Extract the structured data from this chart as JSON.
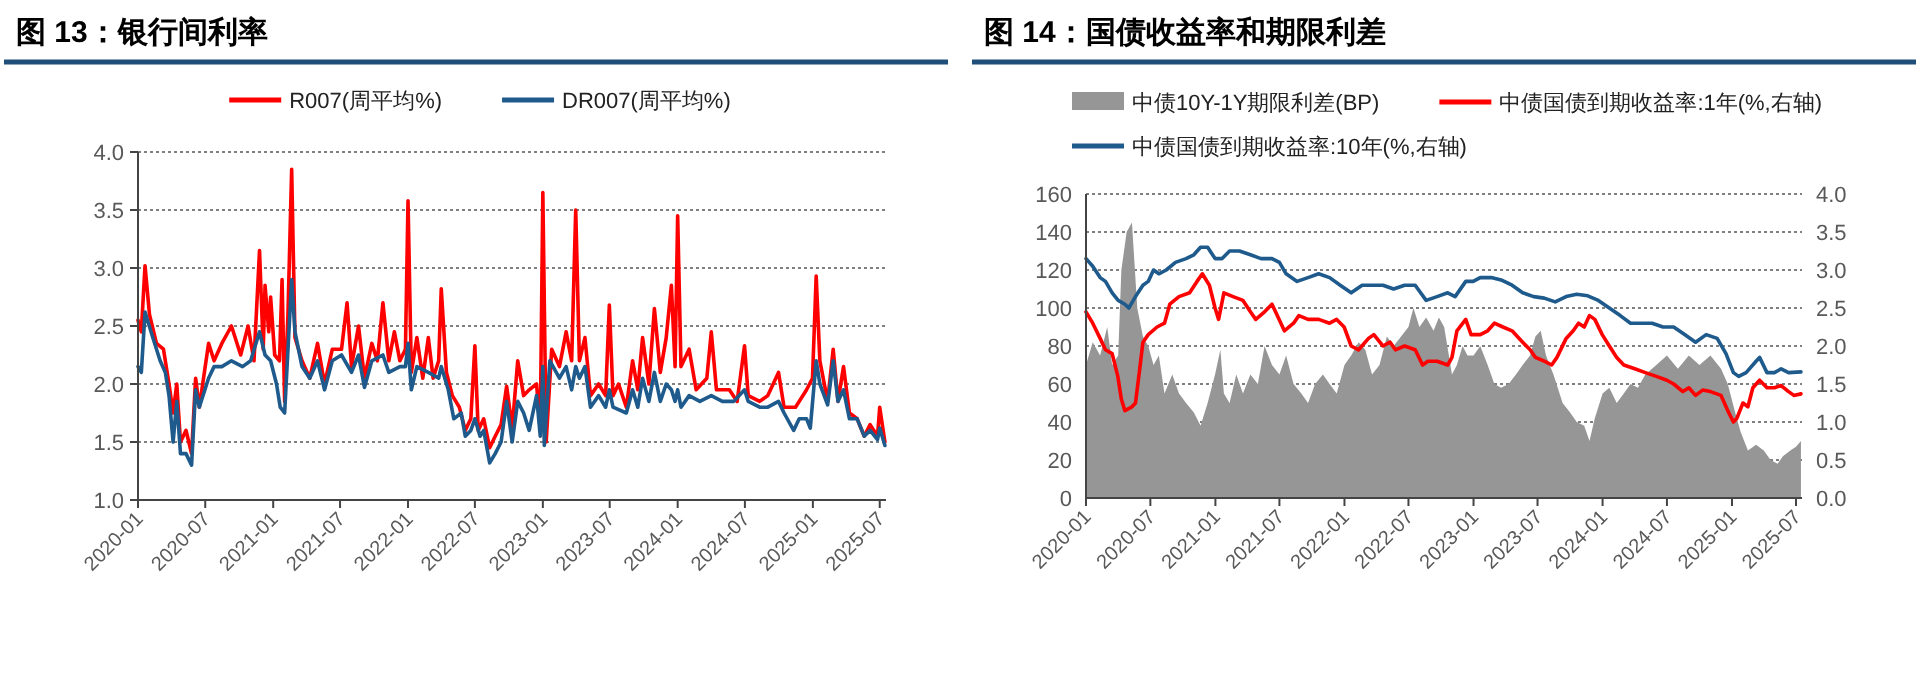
{
  "chart_data": [
    {
      "type": "line",
      "title": "图 13：银行间利率",
      "xlim": [
        "2020-01-01",
        "2025-07-18"
      ],
      "xticks": [
        "2020-01",
        "2020-07",
        "2021-01",
        "2021-07",
        "2022-01",
        "2022-07",
        "2023-01",
        "2023-07",
        "2024-01",
        "2024-07",
        "2025-01",
        "2025-07"
      ],
      "ylim": [
        1,
        4
      ],
      "yticks": [
        {
          "value": 1,
          "label": "1.0"
        },
        1.5,
        {
          "value": 2,
          "label": "2.0"
        },
        2.5,
        {
          "value": 3,
          "label": "3.0"
        },
        3.5,
        {
          "value": 4,
          "label": "4.0"
        }
      ],
      "grid": "y",
      "legend": "top",
      "series": [
        {
          "name": "R007(周平均%)",
          "color": "#ff0000",
          "x": [
            "2020-01-01",
            "2020-01-10",
            "2020-01-20",
            "2020-02-01",
            "2020-02-20",
            "2020-03-10",
            "2020-03-25",
            "2020-04-05",
            "2020-04-15",
            "2020-04-25",
            "2020-05-10",
            "2020-05-25",
            "2020-06-05",
            "2020-06-15",
            "2020-07-10",
            "2020-07-25",
            "2020-08-15",
            "2020-09-10",
            "2020-10-05",
            "2020-10-25",
            "2020-11-10",
            "2020-11-25",
            "2020-12-05",
            "2020-12-10",
            "2020-12-20",
            "2020-12-25",
            "2021-01-05",
            "2021-01-18",
            "2021-01-25",
            "2021-02-01",
            "2021-02-10",
            "2021-02-20",
            "2021-03-01",
            "2021-03-20",
            "2021-04-10",
            "2021-05-01",
            "2021-05-20",
            "2021-06-10",
            "2021-07-05",
            "2021-07-20",
            "2021-08-01",
            "2021-08-20",
            "2021-09-05",
            "2021-09-25",
            "2021-10-10",
            "2021-10-25",
            "2021-11-10",
            "2021-11-25",
            "2021-12-10",
            "2021-12-25",
            "2022-01-01",
            "2022-01-10",
            "2022-01-25",
            "2022-02-10",
            "2022-02-25",
            "2022-03-10",
            "2022-03-25",
            "2022-04-01",
            "2022-04-15",
            "2022-05-01",
            "2022-05-20",
            "2022-06-05",
            "2022-06-20",
            "2022-07-01",
            "2022-07-10",
            "2022-07-25",
            "2022-08-10",
            "2022-08-25",
            "2022-09-10",
            "2022-09-25",
            "2022-10-10",
            "2022-10-25",
            "2022-11-10",
            "2022-11-25",
            "2022-12-15",
            "2022-12-25",
            "2023-01-01",
            "2023-01-10",
            "2023-01-25",
            "2023-02-15",
            "2023-03-05",
            "2023-03-20",
            "2023-03-31",
            "2023-04-10",
            "2023-04-25",
            "2023-05-10",
            "2023-06-01",
            "2023-06-20",
            "2023-06-30",
            "2023-07-10",
            "2023-07-25",
            "2023-08-15",
            "2023-09-01",
            "2023-09-15",
            "2023-09-28",
            "2023-10-15",
            "2023-10-30",
            "2023-11-15",
            "2023-12-01",
            "2023-12-15",
            "2023-12-25",
            "2024-01-01",
            "2024-01-10",
            "2024-02-01",
            "2024-02-20",
            "2024-03-20",
            "2024-04-01",
            "2024-04-15",
            "2024-05-20",
            "2024-06-10",
            "2024-06-30",
            "2024-07-10",
            "2024-08-10",
            "2024-09-01",
            "2024-09-30",
            "2024-10-15",
            "2024-11-15",
            "2024-12-15",
            "2024-12-31",
            "2025-01-10",
            "2025-01-20",
            "2025-02-10",
            "2025-02-25",
            "2025-03-10",
            "2025-03-25",
            "2025-04-10",
            "2025-05-01",
            "2025-05-20",
            "2025-06-05",
            "2025-06-25",
            "2025-07-01",
            "2025-07-15"
          ],
          "values": [
            2.55,
            2.45,
            3.02,
            2.6,
            2.35,
            2.3,
            2.0,
            1.75,
            2.0,
            1.5,
            1.6,
            1.4,
            2.05,
            1.8,
            2.35,
            2.2,
            2.35,
            2.5,
            2.25,
            2.5,
            2.2,
            3.15,
            2.3,
            2.85,
            2.45,
            2.75,
            2.25,
            2.2,
            2.9,
            1.85,
            2.6,
            3.85,
            2.4,
            2.2,
            2.05,
            2.35,
            2.0,
            2.3,
            2.3,
            2.7,
            2.15,
            2.5,
            2.05,
            2.35,
            2.2,
            2.7,
            2.2,
            2.45,
            2.2,
            2.3,
            3.58,
            2.1,
            2.4,
            2.05,
            2.4,
            2.05,
            2.2,
            2.82,
            2.1,
            1.9,
            1.8,
            1.6,
            1.7,
            2.33,
            1.6,
            1.7,
            1.45,
            1.55,
            1.65,
            1.98,
            1.62,
            2.2,
            1.9,
            1.95,
            2.0,
            1.6,
            3.65,
            1.5,
            2.3,
            2.15,
            2.45,
            2.2,
            3.5,
            2.2,
            2.4,
            1.9,
            2.0,
            1.9,
            2.68,
            1.9,
            2.0,
            1.8,
            2.2,
            1.95,
            2.4,
            2.0,
            2.65,
            2.1,
            2.4,
            2.85,
            2.15,
            3.45,
            2.15,
            2.3,
            1.95,
            2.05,
            2.45,
            1.95,
            1.95,
            1.85,
            2.33,
            1.9,
            1.85,
            1.9,
            2.1,
            1.8,
            1.8,
            1.95,
            2.05,
            2.93,
            2.2,
            1.85,
            2.3,
            1.85,
            2.15,
            1.75,
            1.7,
            1.55,
            1.65,
            1.55,
            1.8,
            1.5
          ]
        },
        {
          "name": "DR007(周平均%)",
          "color": "#1f5a8c",
          "x": [
            "2020-01-01",
            "2020-01-10",
            "2020-01-20",
            "2020-02-10",
            "2020-03-01",
            "2020-03-15",
            "2020-03-25",
            "2020-04-05",
            "2020-04-15",
            "2020-04-25",
            "2020-05-10",
            "2020-05-25",
            "2020-06-05",
            "2020-06-15",
            "2020-07-10",
            "2020-07-25",
            "2020-08-15",
            "2020-09-10",
            "2020-10-10",
            "2020-11-01",
            "2020-11-25",
            "2020-12-10",
            "2020-12-25",
            "2021-01-10",
            "2021-01-20",
            "2021-02-01",
            "2021-02-20",
            "2021-03-01",
            "2021-03-20",
            "2021-04-10",
            "2021-05-01",
            "2021-05-20",
            "2021-06-10",
            "2021-07-05",
            "2021-08-01",
            "2021-08-20",
            "2021-09-05",
            "2021-09-25",
            "2021-10-25",
            "2021-11-10",
            "2021-12-10",
            "2021-12-25",
            "2022-01-01",
            "2022-01-10",
            "2022-01-25",
            "2022-02-25",
            "2022-03-25",
            "2022-04-01",
            "2022-04-20",
            "2022-05-05",
            "2022-05-25",
            "2022-06-05",
            "2022-06-20",
            "2022-07-01",
            "2022-07-15",
            "2022-07-25",
            "2022-08-10",
            "2022-08-25",
            "2022-09-10",
            "2022-09-25",
            "2022-10-10",
            "2022-10-25",
            "2022-11-10",
            "2022-11-25",
            "2022-12-15",
            "2022-12-25",
            "2023-01-01",
            "2023-01-05",
            "2023-01-20",
            "2023-02-15",
            "2023-03-05",
            "2023-03-20",
            "2023-03-31",
            "2023-04-10",
            "2023-04-25",
            "2023-05-10",
            "2023-06-01",
            "2023-06-20",
            "2023-06-30",
            "2023-07-10",
            "2023-08-15",
            "2023-09-01",
            "2023-09-15",
            "2023-09-28",
            "2023-10-15",
            "2023-10-30",
            "2023-11-15",
            "2023-12-01",
            "2023-12-15",
            "2023-12-25",
            "2024-01-01",
            "2024-01-10",
            "2024-02-01",
            "2024-03-01",
            "2024-04-01",
            "2024-05-01",
            "2024-06-01",
            "2024-06-30",
            "2024-07-10",
            "2024-08-10",
            "2024-09-01",
            "2024-09-30",
            "2024-10-15",
            "2024-11-10",
            "2024-11-25",
            "2024-12-15",
            "2024-12-25",
            "2025-01-10",
            "2025-01-20",
            "2025-02-10",
            "2025-02-25",
            "2025-03-10",
            "2025-03-25",
            "2025-04-10",
            "2025-05-01",
            "2025-05-20",
            "2025-06-05",
            "2025-06-25",
            "2025-07-01",
            "2025-07-15"
          ],
          "values": [
            2.15,
            2.1,
            2.62,
            2.4,
            2.2,
            2.1,
            1.9,
            1.5,
            1.85,
            1.4,
            1.4,
            1.3,
            1.95,
            1.8,
            2.05,
            2.15,
            2.15,
            2.2,
            2.15,
            2.2,
            2.45,
            2.25,
            2.2,
            2.0,
            1.8,
            1.75,
            2.9,
            2.45,
            2.15,
            2.05,
            2.2,
            1.95,
            2.2,
            2.25,
            2.1,
            2.25,
            1.97,
            2.2,
            2.25,
            2.1,
            2.15,
            2.15,
            2.35,
            1.95,
            2.15,
            2.1,
            2.05,
            2.15,
            1.95,
            1.7,
            1.75,
            1.55,
            1.6,
            1.7,
            1.55,
            1.6,
            1.32,
            1.4,
            1.5,
            1.85,
            1.5,
            1.85,
            1.75,
            1.6,
            1.9,
            1.55,
            2.15,
            1.47,
            2.2,
            2.05,
            2.15,
            1.95,
            2.15,
            2.05,
            2.15,
            1.8,
            1.9,
            1.8,
            1.95,
            1.8,
            1.75,
            1.95,
            1.8,
            2.05,
            1.85,
            2.1,
            1.85,
            2.0,
            1.95,
            1.85,
            1.95,
            1.8,
            1.9,
            1.85,
            1.9,
            1.85,
            1.85,
            1.95,
            1.85,
            1.8,
            1.8,
            1.85,
            1.75,
            1.6,
            1.7,
            1.7,
            1.62,
            2.2,
            2.0,
            1.82,
            2.2,
            1.85,
            1.95,
            1.7,
            1.7,
            1.55,
            1.6,
            1.52,
            1.62,
            1.47
          ]
        }
      ]
    },
    {
      "type": "area",
      "title": "图 14：国债收益率和期限利差",
      "xlim": [
        "2020-01-01",
        "2025-07-18"
      ],
      "xticks": [
        "2020-01",
        "2020-07",
        "2021-01",
        "2021-07",
        "2022-01",
        "2022-07",
        "2023-01",
        "2023-07",
        "2024-01",
        "2024-07",
        "2025-01",
        "2025-07"
      ],
      "ylim": [
        0,
        160
      ],
      "yticks": [
        0,
        20,
        40,
        60,
        80,
        100,
        120,
        140,
        160
      ],
      "y2lim": [
        0,
        4
      ],
      "y2ticks": [
        {
          "value": 0,
          "label": "0.0"
        },
        0.5,
        {
          "value": 1,
          "label": "1.0"
        },
        1.5,
        {
          "value": 2,
          "label": "2.0"
        },
        2.5,
        {
          "value": 3,
          "label": "3.0"
        },
        3.5,
        {
          "value": 4,
          "label": "4.0"
        }
      ],
      "grid": "y",
      "legend": "top left",
      "series": [
        {
          "name": "中债10Y-1Y期限利差(BP)",
          "color": "#969696",
          "x": [
            "2020-01-01",
            "2020-01-20",
            "2020-02-10",
            "2020-03-01",
            "2020-03-15",
            "2020-04-01",
            "2020-04-10",
            "2020-04-25",
            "2020-05-10",
            "2020-05-25",
            "2020-06-10",
            "2020-06-25",
            "2020-07-10",
            "2020-07-25",
            "2020-08-10",
            "2020-09-01",
            "2020-09-20",
            "2020-10-10",
            "2020-11-01",
            "2020-11-20",
            "2020-12-10",
            "2020-12-31",
            "2021-01-15",
            "2021-01-25",
            "2021-02-10",
            "2021-03-01",
            "2021-03-20",
            "2021-04-10",
            "2021-05-01",
            "2021-05-20",
            "2021-06-10",
            "2021-07-01",
            "2021-07-20",
            "2021-08-10",
            "2021-09-01",
            "2021-09-20",
            "2021-10-10",
            "2021-11-01",
            "2021-11-20",
            "2021-12-10",
            "2022-01-01",
            "2022-01-20",
            "2022-02-10",
            "2022-03-01",
            "2022-03-20",
            "2022-04-10",
            "2022-05-01",
            "2022-05-20",
            "2022-06-10",
            "2022-07-01",
            "2022-07-15",
            "2022-08-01",
            "2022-08-20",
            "2022-09-10",
            "2022-09-25",
            "2022-10-10",
            "2022-11-01",
            "2022-11-15",
            "2022-12-01",
            "2022-12-15",
            "2023-01-01",
            "2023-01-20",
            "2023-02-10",
            "2023-03-01",
            "2023-03-20",
            "2023-04-10",
            "2023-05-01",
            "2023-05-20",
            "2023-06-10",
            "2023-06-25",
            "2023-07-10",
            "2023-07-25",
            "2023-08-15",
            "2023-09-10",
            "2023-10-01",
            "2023-10-20",
            "2023-11-10",
            "2023-11-25",
            "2023-12-10",
            "2024-01-01",
            "2024-01-20",
            "2024-02-10",
            "2024-03-01",
            "2024-03-20",
            "2024-04-10",
            "2024-05-01",
            "2024-06-01",
            "2024-07-01",
            "2024-08-01",
            "2024-09-01",
            "2024-10-01",
            "2024-11-01",
            "2024-12-01",
            "2024-12-20",
            "2025-01-10",
            "2025-01-25",
            "2025-02-15",
            "2025-03-10",
            "2025-04-01",
            "2025-04-20",
            "2025-05-10",
            "2025-05-25",
            "2025-06-15",
            "2025-07-01",
            "2025-07-15"
          ],
          "values": [
            70,
            82,
            75,
            90,
            70,
            75,
            120,
            140,
            145,
            100,
            85,
            80,
            70,
            75,
            55,
            65,
            55,
            50,
            45,
            38,
            50,
            65,
            78,
            55,
            50,
            65,
            55,
            65,
            60,
            80,
            70,
            65,
            75,
            60,
            55,
            50,
            60,
            65,
            60,
            55,
            70,
            75,
            82,
            78,
            65,
            70,
            85,
            80,
            85,
            90,
            100,
            90,
            95,
            88,
            95,
            90,
            65,
            70,
            80,
            75,
            75,
            80,
            70,
            60,
            58,
            60,
            65,
            70,
            75,
            85,
            88,
            75,
            65,
            50,
            45,
            40,
            38,
            30,
            42,
            55,
            58,
            50,
            55,
            60,
            58,
            65,
            70,
            75,
            68,
            75,
            70,
            75,
            68,
            60,
            45,
            35,
            25,
            28,
            25,
            20,
            18,
            22,
            25,
            27,
            30
          ]
        },
        {
          "name": "中债国债到期收益率:1年(%,右轴)",
          "type": "line",
          "axis": "y2",
          "color": "#ff0000",
          "x": [
            "2020-01-01",
            "2020-01-20",
            "2020-02-10",
            "2020-02-25",
            "2020-03-15",
            "2020-03-31",
            "2020-04-10",
            "2020-04-20",
            "2020-05-10",
            "2020-05-20",
            "2020-06-01",
            "2020-06-10",
            "2020-06-25",
            "2020-07-20",
            "2020-08-10",
            "2020-08-25",
            "2020-09-20",
            "2020-10-20",
            "2020-11-10",
            "2020-11-25",
            "2020-12-15",
            "2020-12-31",
            "2021-01-10",
            "2021-01-25",
            "2021-02-20",
            "2021-03-20",
            "2021-04-10",
            "2021-04-25",
            "2021-05-20",
            "2021-06-10",
            "2021-06-25",
            "2021-07-15",
            "2021-08-10",
            "2021-08-25",
            "2021-09-20",
            "2021-10-20",
            "2021-11-20",
            "2021-12-10",
            "2021-12-31",
            "2022-01-20",
            "2022-02-10",
            "2022-03-10",
            "2022-03-25",
            "2022-04-20",
            "2022-05-10",
            "2022-05-25",
            "2022-06-20",
            "2022-07-20",
            "2022-08-10",
            "2022-08-25",
            "2022-09-20",
            "2022-10-20",
            "2022-11-01",
            "2022-11-15",
            "2022-12-10",
            "2022-12-25",
            "2023-01-20",
            "2023-02-10",
            "2023-03-01",
            "2023-03-25",
            "2023-04-20",
            "2023-05-20",
            "2023-06-10",
            "2023-06-25",
            "2023-07-20",
            "2023-08-10",
            "2023-08-25",
            "2023-09-20",
            "2023-10-10",
            "2023-10-25",
            "2023-11-10",
            "2023-11-25",
            "2023-12-10",
            "2023-12-31",
            "2024-01-20",
            "2024-02-10",
            "2024-03-01",
            "2024-04-01",
            "2024-05-01",
            "2024-06-01",
            "2024-07-01",
            "2024-07-20",
            "2024-08-15",
            "2024-09-01",
            "2024-09-20",
            "2024-10-10",
            "2024-11-01",
            "2024-12-01",
            "2024-12-20",
            "2025-01-05",
            "2025-01-15",
            "2025-02-01",
            "2025-02-15",
            "2025-03-01",
            "2025-03-20",
            "2025-04-10",
            "2025-05-01",
            "2025-05-20",
            "2025-06-10",
            "2025-06-25",
            "2025-07-15"
          ],
          "values": [
            2.45,
            2.3,
            2.1,
            1.95,
            1.9,
            1.6,
            1.3,
            1.15,
            1.2,
            1.25,
            1.7,
            2.05,
            2.15,
            2.25,
            2.3,
            2.55,
            2.65,
            2.7,
            2.85,
            2.95,
            2.8,
            2.5,
            2.35,
            2.7,
            2.65,
            2.6,
            2.45,
            2.35,
            2.45,
            2.55,
            2.4,
            2.2,
            2.3,
            2.4,
            2.35,
            2.35,
            2.3,
            2.35,
            2.25,
            2.0,
            1.95,
            2.1,
            2.15,
            2.0,
            2.05,
            1.95,
            2.0,
            1.95,
            1.75,
            1.8,
            1.8,
            1.75,
            1.85,
            2.2,
            2.35,
            2.15,
            2.15,
            2.2,
            2.3,
            2.25,
            2.2,
            2.05,
            1.95,
            1.85,
            1.8,
            1.75,
            1.85,
            2.1,
            2.2,
            2.3,
            2.25,
            2.4,
            2.35,
            2.15,
            2.0,
            1.85,
            1.75,
            1.7,
            1.65,
            1.6,
            1.55,
            1.5,
            1.4,
            1.45,
            1.35,
            1.42,
            1.4,
            1.35,
            1.15,
            1.0,
            1.05,
            1.25,
            1.2,
            1.45,
            1.55,
            1.45,
            1.45,
            1.48,
            1.4,
            1.35,
            1.37
          ]
        },
        {
          "name": "中债国债到期收益率:10年(%,右轴)",
          "type": "line",
          "axis": "y2",
          "color": "#1f5a8c",
          "x": [
            "2020-01-01",
            "2020-01-20",
            "2020-02-10",
            "2020-02-25",
            "2020-03-15",
            "2020-04-01",
            "2020-04-20",
            "2020-05-01",
            "2020-05-20",
            "2020-06-10",
            "2020-06-25",
            "2020-07-10",
            "2020-07-25",
            "2020-08-15",
            "2020-09-10",
            "2020-10-10",
            "2020-11-01",
            "2020-11-20",
            "2020-12-10",
            "2020-12-31",
            "2021-01-20",
            "2021-02-10",
            "2021-03-10",
            "2021-04-10",
            "2021-05-10",
            "2021-06-10",
            "2021-07-01",
            "2021-07-20",
            "2021-08-20",
            "2021-09-20",
            "2021-10-20",
            "2021-11-20",
            "2021-12-20",
            "2022-01-20",
            "2022-02-20",
            "2022-03-20",
            "2022-04-20",
            "2022-05-20",
            "2022-06-20",
            "2022-07-20",
            "2022-08-20",
            "2022-09-20",
            "2022-10-20",
            "2022-11-10",
            "2022-12-10",
            "2022-12-31",
            "2023-01-20",
            "2023-02-20",
            "2023-03-20",
            "2023-04-20",
            "2023-05-20",
            "2023-06-20",
            "2023-07-20",
            "2023-08-20",
            "2023-09-20",
            "2023-10-20",
            "2023-11-20",
            "2023-12-20",
            "2024-01-20",
            "2024-02-20",
            "2024-03-20",
            "2024-04-20",
            "2024-05-20",
            "2024-06-20",
            "2024-07-20",
            "2024-08-20",
            "2024-09-20",
            "2024-10-20",
            "2024-11-20",
            "2024-12-15",
            "2025-01-05",
            "2025-01-20",
            "2025-02-10",
            "2025-03-10",
            "2025-03-20",
            "2025-04-10",
            "2025-05-01",
            "2025-05-20",
            "2025-06-10",
            "2025-07-15"
          ],
          "values": [
            3.15,
            3.05,
            2.9,
            2.85,
            2.7,
            2.6,
            2.55,
            2.5,
            2.65,
            2.8,
            2.85,
            3.0,
            2.95,
            3.0,
            3.1,
            3.15,
            3.2,
            3.3,
            3.3,
            3.15,
            3.15,
            3.25,
            3.25,
            3.2,
            3.15,
            3.15,
            3.1,
            2.95,
            2.85,
            2.9,
            2.95,
            2.9,
            2.8,
            2.7,
            2.8,
            2.8,
            2.8,
            2.75,
            2.8,
            2.8,
            2.6,
            2.65,
            2.7,
            2.65,
            2.85,
            2.85,
            2.9,
            2.9,
            2.87,
            2.8,
            2.7,
            2.65,
            2.63,
            2.58,
            2.65,
            2.68,
            2.66,
            2.6,
            2.5,
            2.4,
            2.3,
            2.3,
            2.3,
            2.25,
            2.25,
            2.15,
            2.05,
            2.15,
            2.1,
            1.9,
            1.65,
            1.6,
            1.65,
            1.8,
            1.85,
            1.65,
            1.65,
            1.7,
            1.65,
            1.66
          ]
        }
      ]
    }
  ]
}
